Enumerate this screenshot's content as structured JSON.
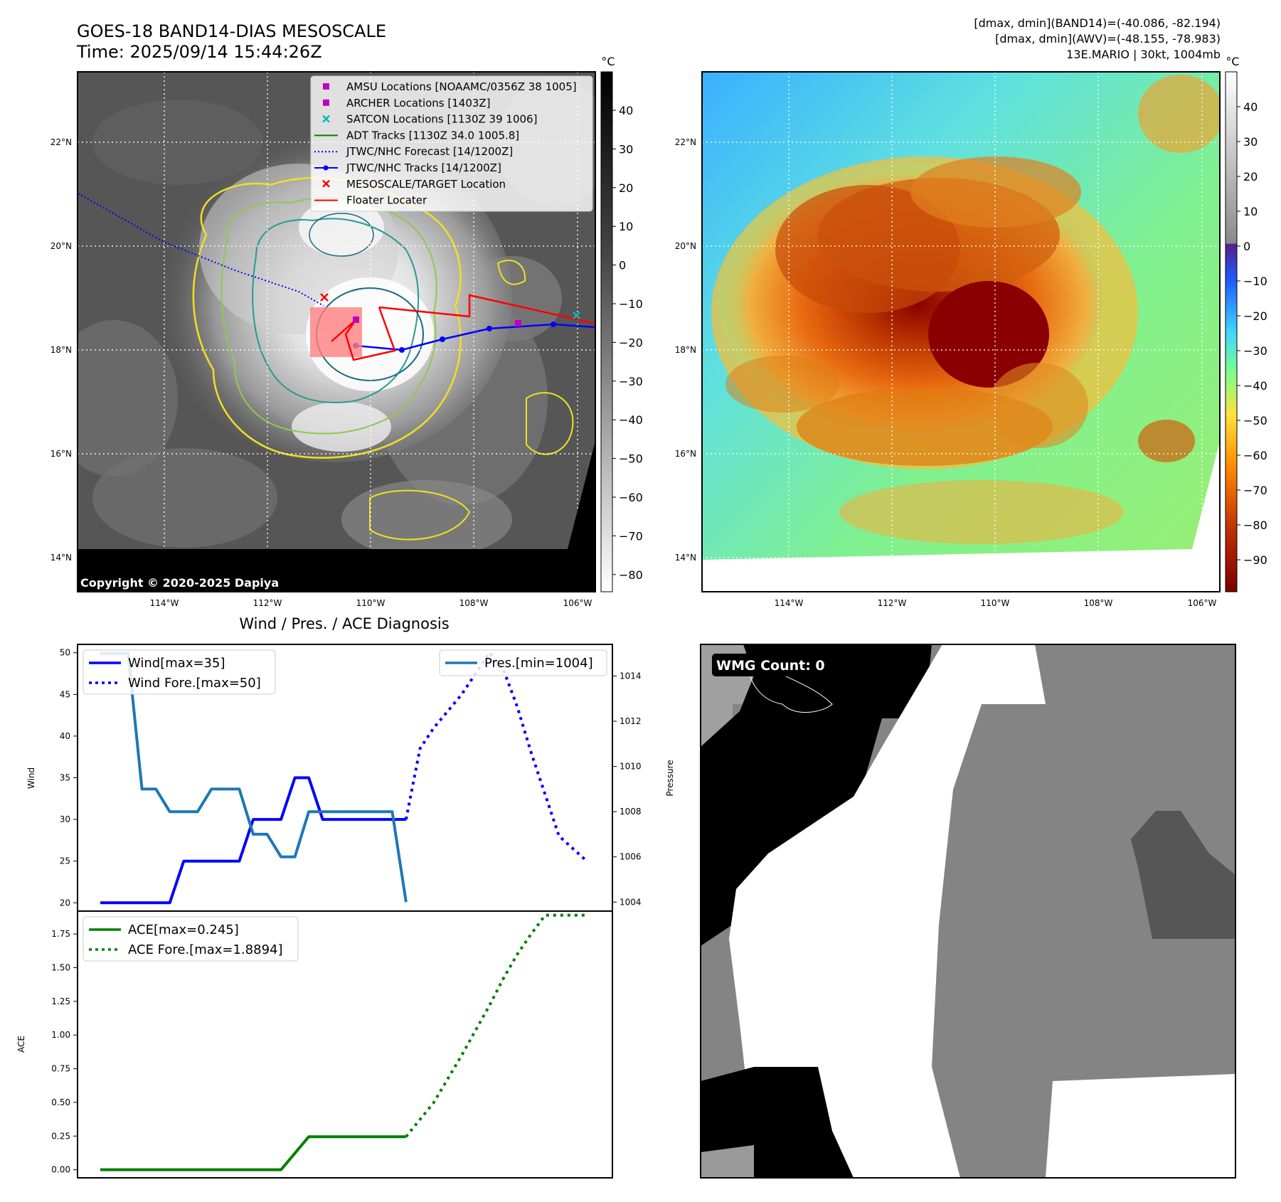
{
  "header": {
    "title_line1": "GOES-18 BAND14-DIAS MESOSCALE",
    "title_line2": "Time: 2025/09/14 15:44:26Z",
    "stats_line1": "[dmax, dmin](BAND14)=(-40.086, -82.194)",
    "stats_line2": "[dmax, dmin](AWV)=(-48.155, -78.983)",
    "stats_line3": "13E.MARIO | 30kt, 1004mb"
  },
  "colors": {
    "wind": "#0000ff",
    "pressure": "#1f77b4",
    "ace": "#008000",
    "floater": "#ff0000",
    "amsu": "#c000c0",
    "satcon": "#00bbbb"
  },
  "maps": {
    "unit_label": "°C",
    "lat_ticks": [
      "22°N",
      "20°N",
      "18°N",
      "16°N",
      "14°N"
    ],
    "lon_ticks": [
      "114°W",
      "112°W",
      "110°W",
      "108°W",
      "106°W"
    ],
    "ir_colorbar_ticks": [
      "40",
      "30",
      "20",
      "10",
      "0",
      "−10",
      "−20",
      "−30",
      "−40",
      "−50",
      "−60",
      "−70",
      "−80"
    ],
    "color_colorbar_ticks": [
      "40",
      "30",
      "20",
      "10",
      "0",
      "−10",
      "−20",
      "−30",
      "−40",
      "−50",
      "−60",
      "−70",
      "−80",
      "−90"
    ],
    "copyright": "Copyright © 2020-2025 Dapiya",
    "legend": [
      {
        "label": "AMSU Locations [NOAAMC/0356Z 38 1005]",
        "marker": "square",
        "color": "#c000c0"
      },
      {
        "label": "ARCHER Locations [1403Z]",
        "marker": "square",
        "color": "#c000c0"
      },
      {
        "label": "SATCON Locations [1130Z 39 1006]",
        "marker": "x",
        "color": "#00bbbb"
      },
      {
        "label": "ADT Tracks [1130Z 34.0 1005.8]",
        "marker": "line",
        "color": "#008000"
      },
      {
        "label": "JTWC/NHC Forecast [14/1200Z]",
        "marker": "dotted",
        "color": "#0000ff"
      },
      {
        "label": "JTWC/NHC Tracks [14/1200Z]",
        "marker": "line-dot",
        "color": "#0000ff"
      },
      {
        "label": "MESOSCALE/TARGET Location",
        "marker": "x",
        "color": "#ff0000"
      },
      {
        "label": "Floater Locater",
        "marker": "line",
        "color": "#ff0000"
      }
    ]
  },
  "diagnosis": {
    "title": "Wind / Pres. / ACE Diagnosis",
    "wind_ylabel": "Wind",
    "pres_ylabel": "Pressure",
    "ace_ylabel": "ACE",
    "wind_ticks": [
      "50",
      "45",
      "40",
      "35",
      "30",
      "25",
      "20"
    ],
    "pres_ticks": [
      "1014",
      "1012",
      "1010",
      "1008",
      "1006",
      "1004"
    ],
    "ace_ticks": [
      "1.75",
      "1.50",
      "1.25",
      "1.00",
      "0.75",
      "0.50",
      "0.25",
      "0.00"
    ],
    "legend_wind": "Wind[max=35]",
    "legend_wind_fore": "Wind Fore.[max=50]",
    "legend_pres": "Pres.[min=1004]",
    "legend_ace": "ACE[max=0.245]",
    "legend_ace_fore": "ACE Fore.[max=1.8894]"
  },
  "wmg": {
    "label": "WMG Count: 0"
  },
  "chart_data": [
    {
      "type": "line",
      "title": "Wind / Pres. / ACE Diagnosis",
      "xlabel": "",
      "ylabel": "Wind",
      "ylim": [
        19,
        51
      ],
      "y2label": "Pressure",
      "y2lim": [
        1003.6,
        1015.4
      ],
      "x": [
        0,
        1,
        2,
        3,
        4,
        5,
        6,
        7,
        8,
        9,
        10,
        11,
        12,
        13,
        14,
        15,
        16,
        17,
        18,
        19,
        20,
        21,
        22,
        23,
        24,
        25,
        26,
        27,
        28,
        29,
        30,
        31,
        32,
        33,
        34,
        35
      ],
      "series": [
        {
          "name": "Wind[max=35]",
          "style": "solid",
          "color": "#0000ff",
          "x": [
            0,
            1,
            2,
            3,
            4,
            5,
            6,
            7,
            8,
            9,
            10,
            11,
            12,
            13,
            14,
            15,
            16,
            17,
            18,
            19,
            20,
            21,
            22
          ],
          "values": [
            20,
            20,
            20,
            20,
            20,
            20,
            25,
            25,
            25,
            25,
            25,
            30,
            30,
            30,
            35,
            35,
            30,
            30,
            30,
            30,
            30,
            30,
            30
          ]
        },
        {
          "name": "Wind Fore.[max=50]",
          "style": "dotted",
          "color": "#0000ff",
          "x": [
            22,
            23,
            24,
            25,
            26,
            27,
            28,
            29,
            30,
            31,
            32,
            33,
            34,
            35
          ],
          "values": [
            30,
            38.5,
            41,
            43,
            45,
            47.5,
            50,
            48,
            43.5,
            38,
            33,
            28,
            26.5,
            25
          ]
        },
        {
          "name": "Pres.[min=1004]",
          "style": "solid",
          "color": "#1f77b4",
          "axis": "right",
          "x": [
            0,
            1,
            2,
            3,
            4,
            5,
            6,
            7,
            8,
            9,
            10,
            11,
            12,
            13,
            14,
            15,
            16,
            17,
            18,
            19,
            20,
            21,
            22
          ],
          "values": [
            1015,
            1015,
            1015,
            1009,
            1009,
            1008,
            1008,
            1008,
            1009,
            1009,
            1009,
            1007,
            1007,
            1006,
            1006,
            1008,
            1008,
            1008,
            1008,
            1008,
            1008,
            1008,
            1004
          ]
        }
      ]
    },
    {
      "type": "line",
      "xlabel": "",
      "ylabel": "ACE",
      "ylim": [
        -0.06,
        1.92
      ],
      "series": [
        {
          "name": "ACE[max=0.245]",
          "style": "solid",
          "color": "#008000",
          "x": [
            0,
            13,
            15,
            22
          ],
          "values": [
            0.0,
            0.0,
            0.245,
            0.245
          ]
        },
        {
          "name": "ACE Fore.[max=1.8894]",
          "style": "dotted",
          "color": "#008000",
          "x": [
            22,
            24,
            26,
            28,
            29,
            30,
            31,
            32,
            33,
            35
          ],
          "values": [
            0.245,
            0.5,
            0.85,
            1.22,
            1.42,
            1.6,
            1.75,
            1.8894,
            1.8894,
            1.8894
          ]
        }
      ]
    }
  ]
}
